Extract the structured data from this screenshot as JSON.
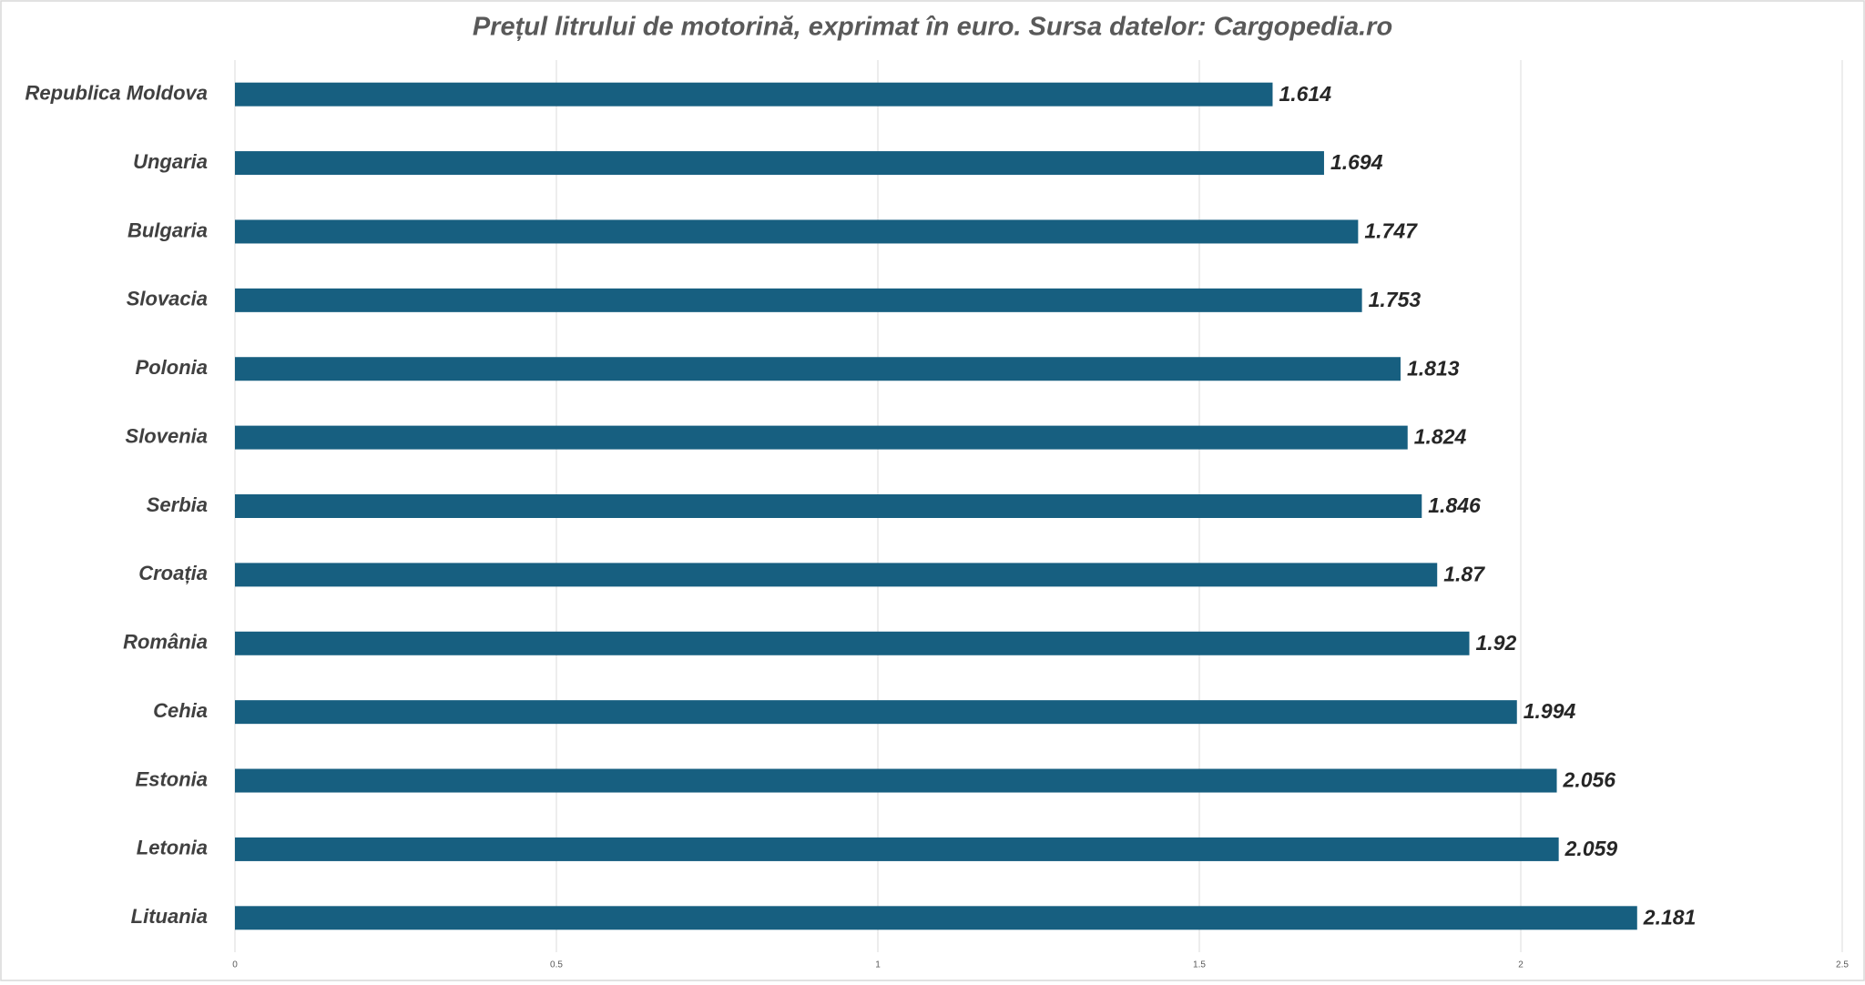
{
  "chart_data": {
    "type": "hbar",
    "title": "Prețul litrului de motorină, exprimat în euro. Sursa datelor: Cargopedia.ro",
    "categories": [
      "Republica Moldova",
      "Ungaria",
      "Bulgaria",
      "Slovacia",
      "Polonia",
      "Slovenia",
      "Serbia",
      "Croația",
      "România",
      "Cehia",
      "Estonia",
      "Letonia",
      "Lituania"
    ],
    "values": [
      1.614,
      1.694,
      1.747,
      1.753,
      1.813,
      1.824,
      1.846,
      1.87,
      1.92,
      1.994,
      2.056,
      2.059,
      2.181
    ],
    "color": "#175f80",
    "xlim": [
      0,
      2.5
    ],
    "xticks": [
      0,
      0.5,
      1,
      1.5,
      2,
      2.5
    ],
    "grid": true
  }
}
